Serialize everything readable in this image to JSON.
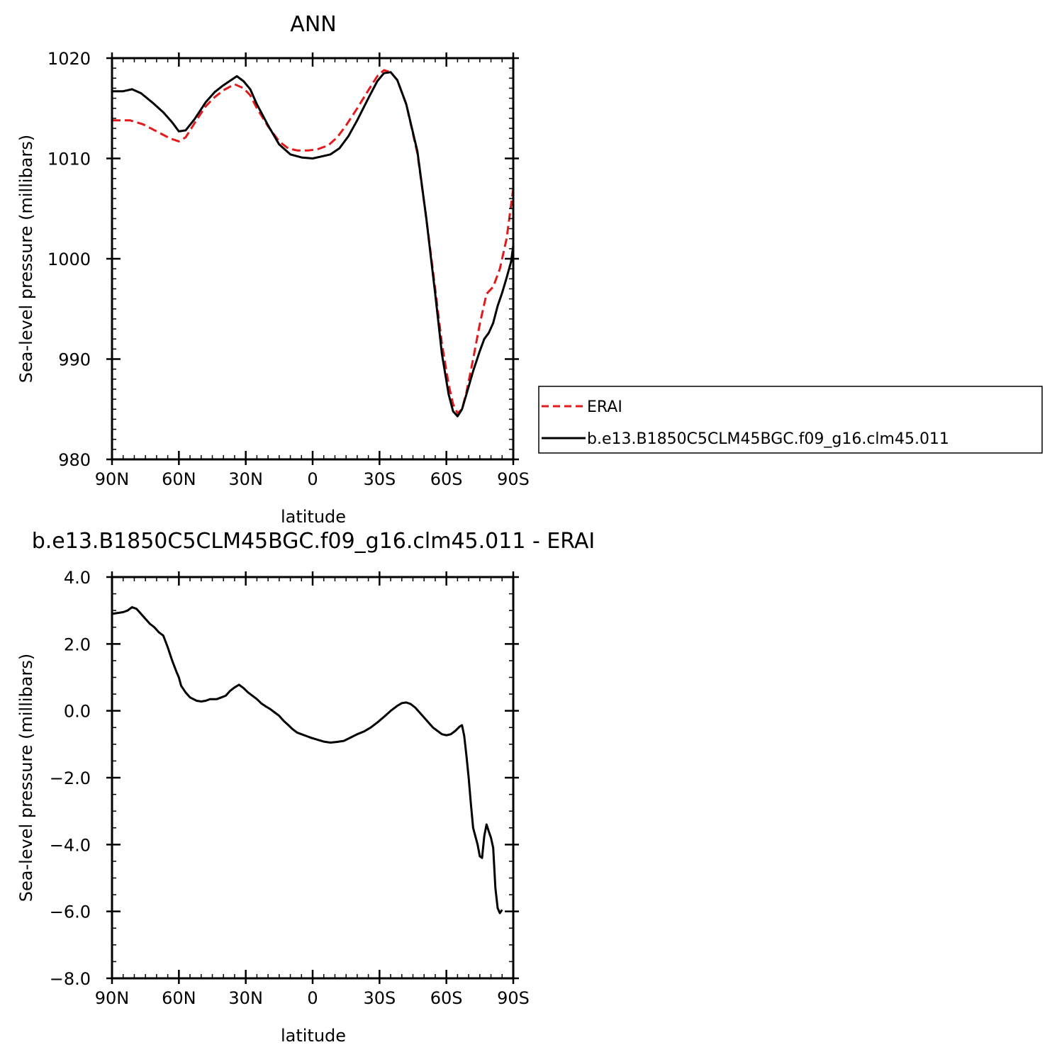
{
  "chart_data": [
    {
      "type": "line",
      "title": "ANN",
      "xlabel": "latitude",
      "ylabel": "Sea-level pressure (millibars)",
      "xlim": [
        90,
        -90
      ],
      "ylim": [
        980,
        1020
      ],
      "x_ticks": [
        90,
        60,
        30,
        0,
        -30,
        -60,
        -90
      ],
      "x_tick_labels": [
        "90N",
        "60N",
        "30N",
        "0",
        "30S",
        "60S",
        "90S"
      ],
      "y_ticks": [
        980,
        990,
        1000,
        1010,
        1020
      ],
      "y_tick_labels": [
        "980",
        "990",
        "1000",
        "1010",
        "1020"
      ],
      "grid": false,
      "legend_position": "outside-right",
      "series": [
        {
          "name": "ERAI",
          "color": "#e31a1c",
          "dash": "dashed",
          "points": [
            [
              90,
              1013.8
            ],
            [
              82,
              1013.8
            ],
            [
              76,
              1013.4
            ],
            [
              70,
              1012.7
            ],
            [
              64,
              1012.0
            ],
            [
              60,
              1011.7
            ],
            [
              57,
              1012.1
            ],
            [
              53,
              1013.5
            ],
            [
              48,
              1015.2
            ],
            [
              44,
              1016.1
            ],
            [
              40,
              1016.8
            ],
            [
              35,
              1017.4
            ],
            [
              31,
              1017.0
            ],
            [
              28,
              1016.3
            ],
            [
              25,
              1015.0
            ],
            [
              20,
              1013.2
            ],
            [
              15,
              1011.7
            ],
            [
              11,
              1011.0
            ],
            [
              7,
              1010.8
            ],
            [
              2,
              1010.8
            ],
            [
              -2,
              1010.9
            ],
            [
              -7,
              1011.3
            ],
            [
              -11,
              1012.1
            ],
            [
              -15,
              1013.3
            ],
            [
              -20,
              1015.0
            ],
            [
              -25,
              1016.8
            ],
            [
              -29,
              1018.2
            ],
            [
              -32,
              1018.8
            ],
            [
              -35,
              1018.6
            ],
            [
              -38,
              1017.8
            ],
            [
              -42,
              1015.4
            ],
            [
              -47,
              1010.5
            ],
            [
              -51,
              1004.0
            ],
            [
              -55,
              997.0
            ],
            [
              -58,
              991.5
            ],
            [
              -61,
              987.5
            ],
            [
              -63,
              985.5
            ],
            [
              -65,
              984.6
            ],
            [
              -67,
              985.0
            ],
            [
              -69,
              986.7
            ],
            [
              -72,
              990.0
            ],
            [
              -75,
              993.5
            ],
            [
              -78,
              996.5
            ],
            [
              -81,
              997.2
            ],
            [
              -84,
              999.0
            ],
            [
              -87,
              1002.0
            ],
            [
              -90,
              1007.0
            ]
          ]
        },
        {
          "name": "b.e13.B1850C5CLM45BGC.f09_g16.clm45.011",
          "color": "#000000",
          "dash": "solid",
          "points": [
            [
              90,
              1016.7
            ],
            [
              85,
              1016.7
            ],
            [
              81,
              1016.9
            ],
            [
              77,
              1016.5
            ],
            [
              72,
              1015.6
            ],
            [
              67,
              1014.6
            ],
            [
              63,
              1013.6
            ],
            [
              60,
              1012.7
            ],
            [
              57,
              1012.8
            ],
            [
              53,
              1013.9
            ],
            [
              48,
              1015.6
            ],
            [
              44,
              1016.6
            ],
            [
              40,
              1017.3
            ],
            [
              36,
              1017.9
            ],
            [
              34,
              1018.2
            ],
            [
              31,
              1017.7
            ],
            [
              28,
              1016.9
            ],
            [
              25,
              1015.4
            ],
            [
              20,
              1013.3
            ],
            [
              15,
              1011.4
            ],
            [
              10,
              1010.4
            ],
            [
              5,
              1010.1
            ],
            [
              0,
              1010.0
            ],
            [
              -4,
              1010.2
            ],
            [
              -8,
              1010.4
            ],
            [
              -12,
              1011.0
            ],
            [
              -16,
              1012.2
            ],
            [
              -20,
              1013.8
            ],
            [
              -25,
              1016.0
            ],
            [
              -29,
              1017.7
            ],
            [
              -32,
              1018.5
            ],
            [
              -35,
              1018.6
            ],
            [
              -38,
              1017.8
            ],
            [
              -42,
              1015.4
            ],
            [
              -47,
              1010.7
            ],
            [
              -51,
              1004.0
            ],
            [
              -55,
              996.5
            ],
            [
              -58,
              990.5
            ],
            [
              -61,
              986.5
            ],
            [
              -63,
              984.8
            ],
            [
              -65,
              984.3
            ],
            [
              -67,
              985.0
            ],
            [
              -69,
              986.5
            ],
            [
              -72,
              988.8
            ],
            [
              -75,
              990.8
            ],
            [
              -77,
              992.0
            ],
            [
              -79,
              992.6
            ],
            [
              -81,
              993.6
            ],
            [
              -83,
              995.3
            ],
            [
              -85,
              996.6
            ],
            [
              -87,
              998.1
            ],
            [
              -89,
              999.7
            ],
            [
              -90,
              1001.3
            ]
          ]
        }
      ]
    },
    {
      "type": "line",
      "title": "b.e13.B1850C5CLM45BGC.f09_g16.clm45.011 - ERAI",
      "xlabel": "latitude",
      "ylabel": "Sea-level pressure (millibars)",
      "xlim": [
        90,
        -90
      ],
      "ylim": [
        -8,
        4
      ],
      "x_ticks": [
        90,
        60,
        30,
        0,
        -30,
        -60,
        -90
      ],
      "x_tick_labels": [
        "90N",
        "60N",
        "30N",
        "0",
        "30S",
        "60S",
        "90S"
      ],
      "y_ticks": [
        -8,
        -6,
        -4,
        -2,
        0,
        2,
        4
      ],
      "y_tick_labels": [
        "−8.0",
        "−6.0",
        "−4.0",
        "−2.0",
        "0.0",
        "2.0",
        "4.0"
      ],
      "grid": false,
      "series": [
        {
          "color": "#000000",
          "dash": "solid",
          "points": [
            [
              90,
              2.9
            ],
            [
              85,
              2.95
            ],
            [
              83,
              3.0
            ],
            [
              81,
              3.1
            ],
            [
              79,
              3.05
            ],
            [
              77,
              2.9
            ],
            [
              75,
              2.75
            ],
            [
              73,
              2.6
            ],
            [
              71,
              2.5
            ],
            [
              69,
              2.35
            ],
            [
              67,
              2.25
            ],
            [
              65,
              1.9
            ],
            [
              63,
              1.5
            ],
            [
              61,
              1.15
            ],
            [
              60,
              1.0
            ],
            [
              59,
              0.75
            ],
            [
              57,
              0.55
            ],
            [
              55,
              0.4
            ],
            [
              52,
              0.3
            ],
            [
              50,
              0.28
            ],
            [
              48,
              0.3
            ],
            [
              46,
              0.35
            ],
            [
              43,
              0.35
            ],
            [
              41,
              0.4
            ],
            [
              39,
              0.45
            ],
            [
              37,
              0.6
            ],
            [
              35,
              0.7
            ],
            [
              33,
              0.78
            ],
            [
              31,
              0.68
            ],
            [
              29,
              0.55
            ],
            [
              27,
              0.45
            ],
            [
              25,
              0.35
            ],
            [
              23,
              0.22
            ],
            [
              21,
              0.13
            ],
            [
              19,
              0.05
            ],
            [
              17,
              -0.05
            ],
            [
              15,
              -0.15
            ],
            [
              13,
              -0.3
            ],
            [
              11,
              -0.42
            ],
            [
              9,
              -0.55
            ],
            [
              7,
              -0.65
            ],
            [
              5,
              -0.7
            ],
            [
              3,
              -0.75
            ],
            [
              1,
              -0.8
            ],
            [
              -1,
              -0.84
            ],
            [
              -3,
              -0.88
            ],
            [
              -5,
              -0.92
            ],
            [
              -8,
              -0.95
            ],
            [
              -11,
              -0.93
            ],
            [
              -14,
              -0.9
            ],
            [
              -17,
              -0.8
            ],
            [
              -20,
              -0.7
            ],
            [
              -23,
              -0.62
            ],
            [
              -26,
              -0.5
            ],
            [
              -29,
              -0.35
            ],
            [
              -32,
              -0.18
            ],
            [
              -35,
              0.0
            ],
            [
              -38,
              0.15
            ],
            [
              -40,
              0.23
            ],
            [
              -42,
              0.25
            ],
            [
              -44,
              0.2
            ],
            [
              -46,
              0.1
            ],
            [
              -48,
              -0.05
            ],
            [
              -50,
              -0.2
            ],
            [
              -52,
              -0.35
            ],
            [
              -54,
              -0.5
            ],
            [
              -56,
              -0.6
            ],
            [
              -58,
              -0.7
            ],
            [
              -60,
              -0.73
            ],
            [
              -62,
              -0.7
            ],
            [
              -64,
              -0.6
            ],
            [
              -66,
              -0.47
            ],
            [
              -67,
              -0.43
            ],
            [
              -68,
              -0.75
            ],
            [
              -69,
              -1.35
            ],
            [
              -70,
              -2.0
            ],
            [
              -71,
              -2.8
            ],
            [
              -72,
              -3.5
            ],
            [
              -74,
              -4.0
            ],
            [
              -75,
              -4.35
            ],
            [
              -76,
              -4.4
            ],
            [
              -77,
              -3.75
            ],
            [
              -78,
              -3.4
            ],
            [
              -79,
              -3.6
            ],
            [
              -80,
              -3.8
            ],
            [
              -81,
              -4.1
            ],
            [
              -82,
              -5.3
            ],
            [
              -83,
              -5.9
            ],
            [
              -84,
              -6.05
            ],
            [
              -85,
              -5.95
            ]
          ]
        }
      ]
    }
  ]
}
